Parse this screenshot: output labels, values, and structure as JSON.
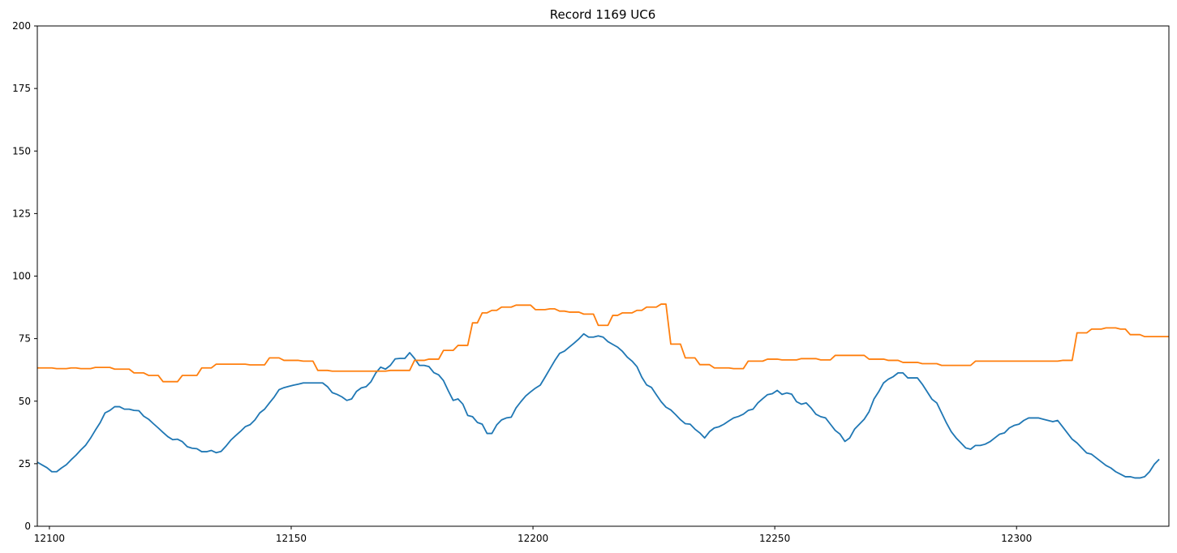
{
  "chart_data": {
    "type": "line",
    "title": "Record 1169 UC6",
    "xlabel": "",
    "ylabel": "",
    "xlim": [
      12097.5,
      12331.5
    ],
    "ylim": [
      0,
      200
    ],
    "grid": false,
    "x_ticks": [
      12100,
      12150,
      12200,
      12250,
      12300
    ],
    "y_ticks": [
      0,
      25,
      50,
      75,
      100,
      125,
      150,
      175,
      200
    ],
    "x_start": 12097.5,
    "series": [
      {
        "color": "#1f77b4",
        "values": [
          25.6,
          24.5,
          23.4,
          21.8,
          21.8,
          23.3,
          24.6,
          26.6,
          28.4,
          30.5,
          32.4,
          35.2,
          38.4,
          41.4,
          45.3,
          46.3,
          47.8,
          47.8,
          46.8,
          46.8,
          46.3,
          46.2,
          44.0,
          42.8,
          41.0,
          39.3,
          37.5,
          35.8,
          34.6,
          34.8,
          33.8,
          31.8,
          31.2,
          31.0,
          29.8,
          29.8,
          30.3,
          29.4,
          29.9,
          32.0,
          34.4,
          36.2,
          37.9,
          39.8,
          40.6,
          42.5,
          45.3,
          46.8,
          49.3,
          51.7,
          54.6,
          55.4,
          55.9,
          56.4,
          56.8,
          57.3,
          57.3,
          57.3,
          57.3,
          57.3,
          55.8,
          53.4,
          52.7,
          51.7,
          50.3,
          50.9,
          53.9,
          55.3,
          55.8,
          57.8,
          61.3,
          63.6,
          62.8,
          64.3,
          66.9,
          67.1,
          67.1,
          69.4,
          67.1,
          64.3,
          64.3,
          63.8,
          61.4,
          60.5,
          58.2,
          54.1,
          50.3,
          50.9,
          48.8,
          44.3,
          43.8,
          41.5,
          40.8,
          37.1,
          37.1,
          40.5,
          42.5,
          43.3,
          43.6,
          47.3,
          49.8,
          52.1,
          53.7,
          55.2,
          56.4,
          59.6,
          62.9,
          66.2,
          69.1,
          70.0,
          71.6,
          73.2,
          74.9,
          76.9,
          75.6,
          75.6,
          76.1,
          75.6,
          73.8,
          72.7,
          71.6,
          69.9,
          67.6,
          66.0,
          63.8,
          59.6,
          56.5,
          55.5,
          52.6,
          49.8,
          47.6,
          46.5,
          44.6,
          42.6,
          41.0,
          40.8,
          38.8,
          37.3,
          35.3,
          37.8,
          39.3,
          39.8,
          40.8,
          42.1,
          43.3,
          43.9,
          44.8,
          46.3,
          46.8,
          49.3,
          51.0,
          52.6,
          53.0,
          54.3,
          52.7,
          53.3,
          52.8,
          49.8,
          48.8,
          49.3,
          47.3,
          44.8,
          43.8,
          43.3,
          40.8,
          38.3,
          36.8,
          33.9,
          35.3,
          38.8,
          40.8,
          42.8,
          45.8,
          50.8,
          53.8,
          57.3,
          58.8,
          59.8,
          61.3,
          61.3,
          59.3,
          59.3,
          59.3,
          56.8,
          53.8,
          50.8,
          49.3,
          45.3,
          41.3,
          37.8,
          35.3,
          33.3,
          31.3,
          30.8,
          32.3,
          32.3,
          32.8,
          33.8,
          35.3,
          36.8,
          37.3,
          39.3,
          40.3,
          40.8,
          42.3,
          43.3,
          43.3,
          43.3,
          42.8,
          42.3,
          41.8,
          42.3,
          39.8,
          37.3,
          34.8,
          33.3,
          31.3,
          29.3,
          28.8,
          27.3,
          25.8,
          24.3,
          23.3,
          21.8,
          20.8,
          19.8,
          19.8,
          19.3,
          19.3,
          19.8,
          21.8,
          24.8,
          26.8
        ]
      },
      {
        "color": "#ff7f0e",
        "values": [
          63.3,
          63.3,
          63.3,
          63.3,
          63.0,
          63.0,
          63.0,
          63.3,
          63.3,
          63.0,
          63.0,
          63.0,
          63.5,
          63.5,
          63.5,
          63.5,
          62.8,
          62.8,
          62.8,
          62.8,
          61.3,
          61.3,
          61.3,
          60.3,
          60.3,
          60.3,
          57.8,
          57.8,
          57.8,
          57.8,
          60.3,
          60.3,
          60.3,
          60.3,
          63.3,
          63.3,
          63.3,
          64.8,
          64.8,
          64.8,
          64.8,
          64.8,
          64.8,
          64.8,
          64.5,
          64.5,
          64.5,
          64.5,
          67.3,
          67.3,
          67.3,
          66.3,
          66.3,
          66.3,
          66.3,
          66.0,
          66.0,
          66.0,
          62.3,
          62.3,
          62.3,
          62.0,
          62.0,
          62.0,
          62.0,
          62.0,
          62.0,
          62.0,
          62.0,
          62.0,
          62.0,
          62.0,
          62.0,
          62.3,
          62.3,
          62.3,
          62.3,
          62.3,
          66.3,
          66.3,
          66.3,
          66.8,
          66.8,
          66.8,
          70.3,
          70.3,
          70.3,
          72.3,
          72.3,
          72.3,
          81.3,
          81.3,
          85.3,
          85.3,
          86.3,
          86.3,
          87.6,
          87.6,
          87.6,
          88.4,
          88.4,
          88.4,
          88.4,
          86.6,
          86.6,
          86.6,
          86.9,
          86.9,
          86.0,
          86.0,
          85.6,
          85.6,
          85.6,
          84.8,
          84.8,
          84.8,
          80.3,
          80.3,
          80.3,
          84.3,
          84.3,
          85.3,
          85.3,
          85.3,
          86.3,
          86.3,
          87.6,
          87.6,
          87.6,
          88.8,
          88.8,
          72.8,
          72.8,
          72.8,
          67.3,
          67.3,
          67.3,
          64.6,
          64.6,
          64.6,
          63.3,
          63.3,
          63.3,
          63.3,
          63.0,
          63.0,
          63.0,
          66.0,
          66.0,
          66.0,
          66.0,
          66.8,
          66.8,
          66.8,
          66.5,
          66.5,
          66.5,
          66.5,
          67.0,
          67.0,
          67.0,
          67.0,
          66.5,
          66.5,
          66.5,
          68.3,
          68.3,
          68.3,
          68.3,
          68.3,
          68.3,
          68.3,
          66.8,
          66.8,
          66.8,
          66.8,
          66.3,
          66.3,
          66.3,
          65.5,
          65.5,
          65.5,
          65.5,
          65.0,
          65.0,
          65.0,
          65.0,
          64.3,
          64.3,
          64.3,
          64.3,
          64.3,
          64.3,
          64.3,
          66.0,
          66.0,
          66.0,
          66.0,
          66.0,
          66.0,
          66.0,
          66.0,
          66.0,
          66.0,
          66.0,
          66.0,
          66.0,
          66.0,
          66.0,
          66.0,
          66.0,
          66.0,
          66.3,
          66.3,
          66.3,
          77.3,
          77.3,
          77.3,
          78.8,
          78.8,
          78.8,
          79.3,
          79.3,
          79.3,
          78.8,
          78.8,
          76.6,
          76.6,
          76.6,
          75.8,
          75.8,
          75.8,
          75.8,
          75.8,
          75.8,
          76.0,
          76.0,
          76.0,
          77.8,
          77.8,
          78.6,
          78.6
        ]
      }
    ]
  }
}
